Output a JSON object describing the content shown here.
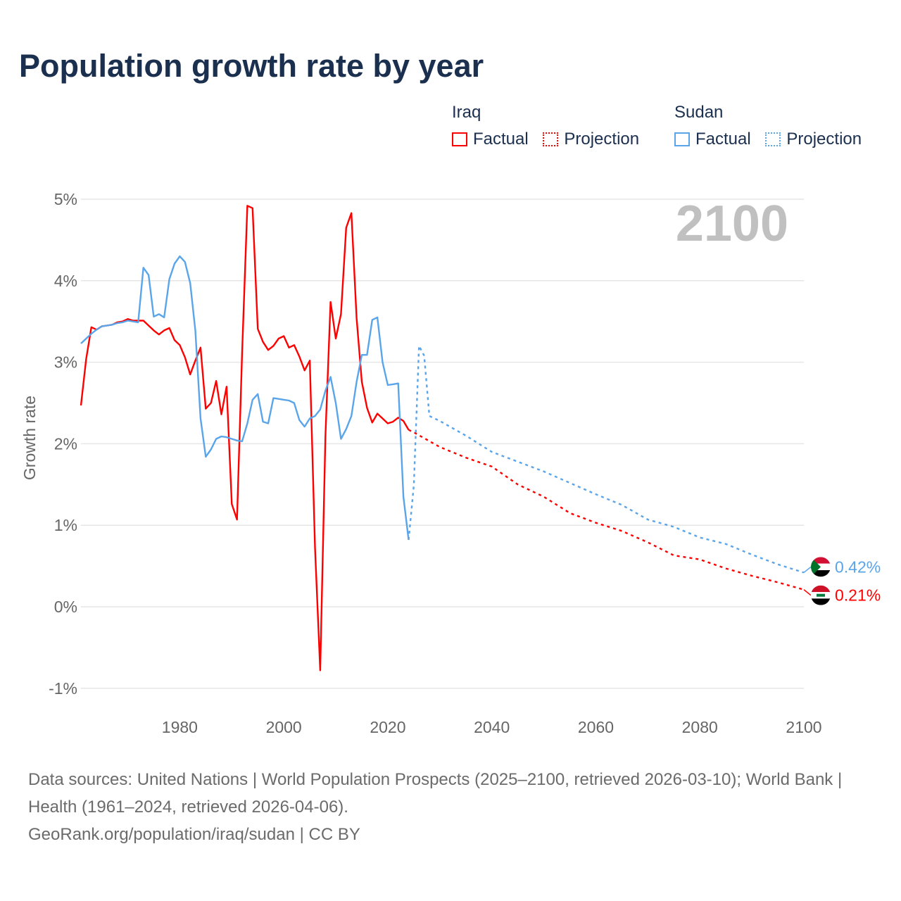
{
  "title": "Population growth rate by year",
  "legend": {
    "groups": [
      {
        "name": "Iraq",
        "color": "#ff0000",
        "factual": "Factual",
        "projection": "Projection"
      },
      {
        "name": "Sudan",
        "color": "#5aa5ea",
        "factual": "Factual",
        "projection": "Projection"
      }
    ]
  },
  "chart_data": {
    "type": "line",
    "title": "Population growth rate by year",
    "xlabel": "",
    "ylabel": "Growth rate",
    "xlim": [
      1961,
      2100
    ],
    "ylim": [
      -1.3,
      5.2
    ],
    "xticks": [
      {
        "v": 1980,
        "label": "1980"
      },
      {
        "v": 2000,
        "label": "2000"
      },
      {
        "v": 2020,
        "label": "2020"
      },
      {
        "v": 2040,
        "label": "2040"
      },
      {
        "v": 2060,
        "label": "2060"
      },
      {
        "v": 2080,
        "label": "2080"
      },
      {
        "v": 2100,
        "label": "2100"
      }
    ],
    "yticks": [
      {
        "v": -1,
        "label": "-1%"
      },
      {
        "v": 0,
        "label": "0%"
      },
      {
        "v": 1,
        "label": "1%"
      },
      {
        "v": 2,
        "label": "2%"
      },
      {
        "v": 3,
        "label": "3%"
      },
      {
        "v": 4,
        "label": "4%"
      },
      {
        "v": 5,
        "label": "5%"
      }
    ],
    "grid": true,
    "year_overlay": "2100",
    "series": [
      {
        "name": "Iraq Factual",
        "color": "#ff0000",
        "dashed": false,
        "x_start": 1961,
        "values": [
          2.47,
          3.04,
          3.43,
          3.4,
          3.44,
          3.45,
          3.46,
          3.49,
          3.5,
          3.53,
          3.51,
          3.51,
          3.51,
          3.45,
          3.39,
          3.34,
          3.39,
          3.42,
          3.27,
          3.21,
          3.06,
          2.85,
          3.02,
          3.18,
          2.43,
          2.5,
          2.77,
          2.36,
          2.7,
          1.26,
          1.07,
          3.13,
          4.92,
          4.89,
          3.41,
          3.25,
          3.15,
          3.2,
          3.29,
          3.32,
          3.18,
          3.21,
          3.07,
          2.9,
          3.02,
          0.73,
          -0.78,
          2.09,
          3.74,
          3.29,
          3.59,
          4.65,
          4.83,
          3.54,
          2.76,
          2.44,
          2.26,
          2.37,
          2.31,
          2.25,
          2.27,
          2.32,
          2.28,
          2.17
        ]
      },
      {
        "name": "Iraq Projection",
        "color": "#ff0000",
        "dashed": true,
        "x": [
          2024,
          2025,
          2030,
          2035,
          2040,
          2045,
          2050,
          2055,
          2060,
          2065,
          2070,
          2075,
          2080,
          2085,
          2090,
          2095,
          2100
        ],
        "values": [
          2.17,
          2.14,
          1.96,
          1.83,
          1.72,
          1.5,
          1.35,
          1.15,
          1.03,
          0.93,
          0.79,
          0.63,
          0.58,
          0.47,
          0.38,
          0.3,
          0.21
        ]
      },
      {
        "name": "Sudan Factual",
        "color": "#5aa5ea",
        "dashed": false,
        "x_start": 1961,
        "values": [
          3.23,
          3.29,
          3.35,
          3.4,
          3.44,
          3.45,
          3.46,
          3.48,
          3.49,
          3.51,
          3.5,
          3.49,
          4.16,
          4.07,
          3.56,
          3.59,
          3.55,
          4.02,
          4.21,
          4.3,
          4.23,
          3.97,
          3.39,
          2.31,
          1.84,
          1.93,
          2.06,
          2.09,
          2.08,
          2.06,
          2.04,
          2.03,
          2.25,
          2.54,
          2.61,
          2.27,
          2.25,
          2.56,
          2.55,
          2.54,
          2.53,
          2.5,
          2.29,
          2.21,
          2.31,
          2.34,
          2.42,
          2.65,
          2.82,
          2.5,
          2.06,
          2.18,
          2.34,
          2.76,
          3.09,
          3.09,
          3.52,
          3.55,
          3.0,
          2.72,
          2.73,
          2.74,
          1.35,
          0.82
        ]
      },
      {
        "name": "Sudan Projection",
        "color": "#5aa5ea",
        "dashed": true,
        "x": [
          2024,
          2025,
          2026,
          2027,
          2028,
          2030,
          2035,
          2040,
          2045,
          2050,
          2055,
          2060,
          2065,
          2070,
          2075,
          2080,
          2085,
          2090,
          2095,
          2100
        ],
        "values": [
          0.82,
          1.49,
          3.2,
          3.08,
          2.34,
          2.28,
          2.1,
          1.9,
          1.78,
          1.66,
          1.52,
          1.38,
          1.25,
          1.07,
          0.98,
          0.85,
          0.77,
          0.64,
          0.52,
          0.42
        ]
      }
    ],
    "end_labels": [
      {
        "country": "Sudan",
        "label": "0.42%",
        "value": 0.42,
        "color": "#5aa5ea"
      },
      {
        "country": "Iraq",
        "label": "0.21%",
        "value": 0.21,
        "color": "#ff0000"
      }
    ]
  },
  "sources": {
    "line1": "Data sources: United Nations | World Population Prospects (2025–2100, retrieved 2026-03-10); World Bank | Health (1961–2024, retrieved 2026-04-06).",
    "line2": "GeoRank.org/population/iraq/sudan | CC BY"
  }
}
